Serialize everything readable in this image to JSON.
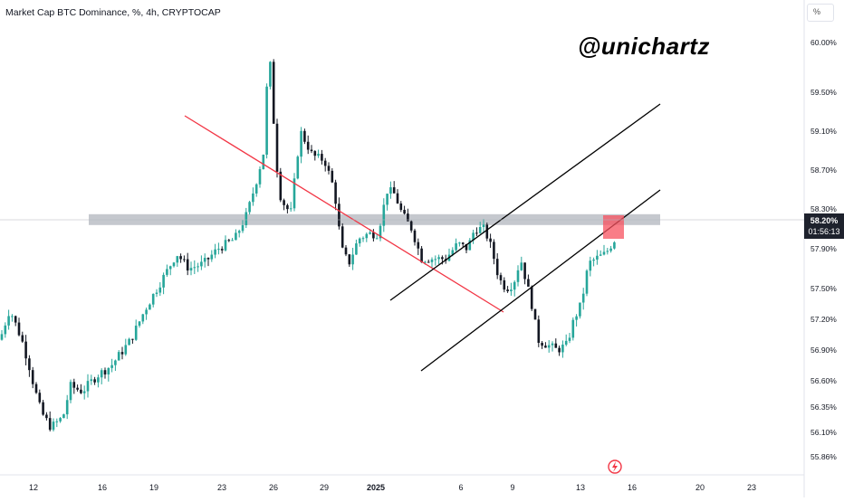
{
  "header": {
    "title": "Market Cap BTC Dominance, %, 4h, CRYPTOCAP",
    "unit_label": "%"
  },
  "watermark": "@unichartz",
  "price_tag": {
    "value": "58.20%",
    "countdown": "01:56:13"
  },
  "colors": {
    "up": "#26a69a",
    "down": "#131722",
    "trend": "#f23645",
    "zone": "#b2b5be",
    "highlight": "#f7525f"
  },
  "icons": {
    "alert": "lightning-icon"
  },
  "chart_data": {
    "type": "candlestick",
    "title": "Market Cap BTC Dominance, %, 4h, CRYPTOCAP",
    "ylim": [
      55.8,
      60.2
    ],
    "xlim": [
      11.3,
      24.2
    ],
    "x_ticks": [
      "12",
      "16",
      "19",
      "23",
      "26",
      "29",
      "2025",
      "6",
      "9",
      "13",
      "16",
      "20",
      "23"
    ],
    "y_ticks": [
      "60.00%",
      "59.50%",
      "59.10%",
      "58.70%",
      "58.30%",
      "57.90%",
      "57.50%",
      "57.20%",
      "56.90%",
      "56.60%",
      "56.35%",
      "56.10%",
      "55.86%"
    ],
    "close_path": [
      [
        11.3,
        57.0
      ],
      [
        11.5,
        57.3
      ],
      [
        11.75,
        57.0
      ],
      [
        11.9,
        56.75
      ],
      [
        12.0,
        56.55
      ],
      [
        12.15,
        56.3
      ],
      [
        12.35,
        56.15
      ],
      [
        12.6,
        56.25
      ],
      [
        12.75,
        56.55
      ],
      [
        13.0,
        56.5
      ],
      [
        13.3,
        56.65
      ],
      [
        13.6,
        56.75
      ],
      [
        14.0,
        57.0
      ],
      [
        14.3,
        57.3
      ],
      [
        14.6,
        57.55
      ],
      [
        14.95,
        57.85
      ],
      [
        15.2,
        57.7
      ],
      [
        15.5,
        57.75
      ],
      [
        15.8,
        57.9
      ],
      [
        16.15,
        58.0
      ],
      [
        16.4,
        58.25
      ],
      [
        16.6,
        58.6
      ],
      [
        16.75,
        58.9
      ],
      [
        16.85,
        60.0
      ],
      [
        17.0,
        58.8
      ],
      [
        17.1,
        58.4
      ],
      [
        17.3,
        58.25
      ],
      [
        17.5,
        59.1
      ],
      [
        17.6,
        59.0
      ],
      [
        17.75,
        58.85
      ],
      [
        18.0,
        58.8
      ],
      [
        18.2,
        58.5
      ],
      [
        18.35,
        57.9
      ],
      [
        18.5,
        57.75
      ],
      [
        18.7,
        58.0
      ],
      [
        18.9,
        58.05
      ],
      [
        19.1,
        58.05
      ],
      [
        19.3,
        58.5
      ],
      [
        19.45,
        58.45
      ],
      [
        19.6,
        58.25
      ],
      [
        19.8,
        58.1
      ],
      [
        20.0,
        57.8
      ],
      [
        20.2,
        57.8
      ],
      [
        20.5,
        57.8
      ],
      [
        20.75,
        57.95
      ],
      [
        20.95,
        57.9
      ],
      [
        21.1,
        58.1
      ],
      [
        21.3,
        58.1
      ],
      [
        21.45,
        57.9
      ],
      [
        21.6,
        57.6
      ],
      [
        21.75,
        57.5
      ],
      [
        21.9,
        57.55
      ],
      [
        22.05,
        57.8
      ],
      [
        22.15,
        57.6
      ],
      [
        22.3,
        57.3
      ],
      [
        22.4,
        57.0
      ],
      [
        22.6,
        56.95
      ],
      [
        22.8,
        56.9
      ],
      [
        23.0,
        56.95
      ],
      [
        23.15,
        57.2
      ],
      [
        23.3,
        57.35
      ],
      [
        23.45,
        57.75
      ],
      [
        23.6,
        57.8
      ],
      [
        23.8,
        57.85
      ],
      [
        24.0,
        58.0
      ],
      [
        24.2,
        57.9
      ]
    ],
    "annotations": [
      {
        "kind": "support-resistance-zone",
        "y_range": [
          58.12,
          58.22
        ]
      },
      {
        "kind": "descending-trendline"
      },
      {
        "kind": "ascending-channel"
      },
      {
        "kind": "breakdown-marker"
      }
    ]
  }
}
